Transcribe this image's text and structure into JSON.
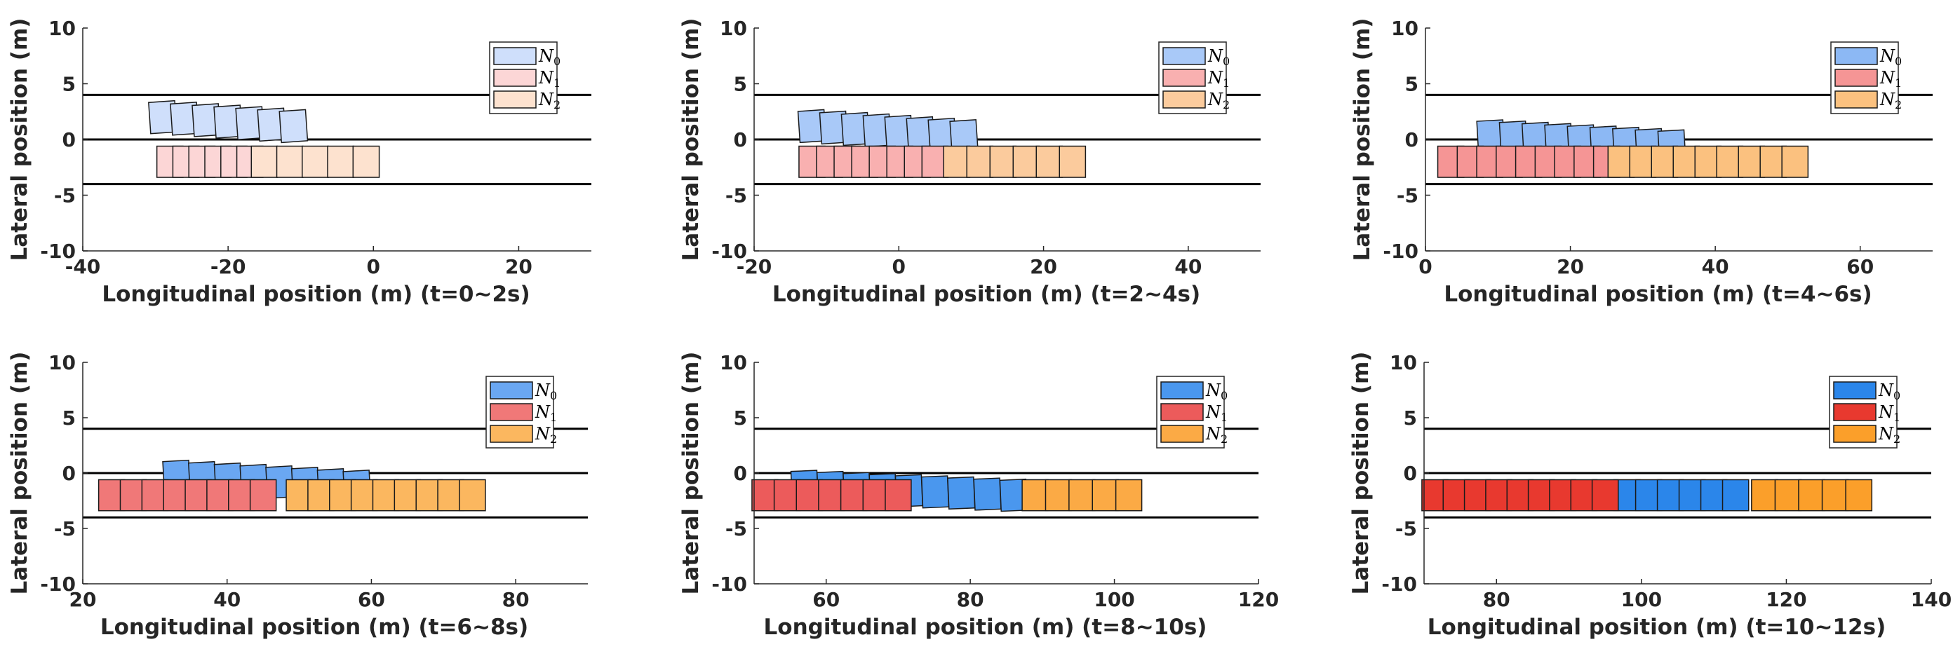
{
  "chart_data": [
    {
      "type": "scatter",
      "title": "",
      "xlabel": "Longitudinal position (m) (t=0~2s)",
      "ylabel": "Lateral position (m)",
      "xlim": [
        -40,
        30
      ],
      "ylim": [
        -10,
        10
      ],
      "xticks": [
        "-40",
        "-20",
        "0",
        "20"
      ],
      "xtick_values": [
        -40,
        -20,
        0,
        20
      ],
      "yticks": [
        "10",
        "5",
        "0",
        "-5",
        "-10"
      ],
      "ytick_values": [
        10,
        5,
        0,
        -5,
        -10
      ],
      "lane_lines": [
        4,
        0,
        -4
      ],
      "legend": {
        "position": "top-right",
        "entries": [
          "N_0",
          "N_1",
          "N_2"
        ]
      },
      "series": [
        {
          "name": "N_0",
          "color": "#cfdffb",
          "x_start": -29,
          "x_end": -11,
          "y_start": 2.0,
          "y_end": 1.2,
          "count": 7
        },
        {
          "name": "N_1",
          "color": "#fcd6d6",
          "x_start": -28,
          "x_end": -17,
          "y_start": -2.0,
          "y_end": -2.0,
          "count": 6
        },
        {
          "name": "N_2",
          "color": "#fde2cf",
          "x_start": -15,
          "x_end": -1,
          "y_start": -2.0,
          "y_end": -2.0,
          "count": 5
        }
      ]
    },
    {
      "type": "scatter",
      "title": "",
      "xlabel": "Longitudinal position (m) (t=2~4s)",
      "ylabel": "Lateral position (m)",
      "xlim": [
        -20,
        50
      ],
      "ylim": [
        -10,
        10
      ],
      "xticks": [
        "-20",
        "0",
        "20",
        "40"
      ],
      "xtick_values": [
        -20,
        0,
        20,
        40
      ],
      "yticks": [
        "10",
        "5",
        "0",
        "-5",
        "-10"
      ],
      "ytick_values": [
        10,
        5,
        0,
        -5,
        -10
      ],
      "lane_lines": [
        4,
        0,
        -4
      ],
      "legend": {
        "position": "top-right",
        "entries": [
          "N_0",
          "N_1",
          "N_2"
        ]
      },
      "series": [
        {
          "name": "N_0",
          "color": "#a9c9f8",
          "x_start": -12,
          "x_end": 9,
          "y_start": 1.2,
          "y_end": 0.3,
          "count": 8
        },
        {
          "name": "N_1",
          "color": "#f9b0b0",
          "x_start": -12,
          "x_end": 5,
          "y_start": -2.0,
          "y_end": -2.0,
          "count": 8
        },
        {
          "name": "N_2",
          "color": "#fbcb9d",
          "x_start": 8,
          "x_end": 24,
          "y_start": -2.0,
          "y_end": -2.0,
          "count": 6
        }
      ]
    },
    {
      "type": "scatter",
      "title": "",
      "xlabel": "Longitudinal position (m) (t=4~6s)",
      "ylabel": "Lateral position (m)",
      "xlim": [
        0,
        70
      ],
      "ylim": [
        -10,
        10
      ],
      "xticks": [
        "0",
        "20",
        "40",
        "60"
      ],
      "xtick_values": [
        0,
        20,
        40,
        60
      ],
      "yticks": [
        "10",
        "5",
        "0",
        "-5",
        "-10"
      ],
      "ytick_values": [
        10,
        5,
        0,
        -5,
        -10
      ],
      "lane_lines": [
        4,
        0,
        -4
      ],
      "legend": {
        "position": "top-right",
        "entries": [
          "N_0",
          "N_1",
          "N_2"
        ]
      },
      "series": [
        {
          "name": "N_0",
          "color": "#8cb8f4",
          "x_start": 9,
          "x_end": 34,
          "y_start": 0.3,
          "y_end": -0.6,
          "count": 9
        },
        {
          "name": "N_1",
          "color": "#f59595",
          "x_start": 3.5,
          "x_end": 25,
          "y_start": -2.0,
          "y_end": -2.0,
          "count": 9
        },
        {
          "name": "N_2",
          "color": "#fbc17f",
          "x_start": 27,
          "x_end": 51,
          "y_start": -2.0,
          "y_end": -2.0,
          "count": 9
        }
      ]
    },
    {
      "type": "scatter",
      "title": "",
      "xlabel": "Longitudinal position (m) (t=6~8s)",
      "ylabel": "Lateral position (m)",
      "xlim": [
        20,
        90
      ],
      "ylim": [
        -10,
        10
      ],
      "xticks": [
        "20",
        "40",
        "60",
        "80"
      ],
      "xtick_values": [
        20,
        40,
        60,
        80
      ],
      "yticks": [
        "10",
        "5",
        "0",
        "-5",
        "-10"
      ],
      "ytick_values": [
        10,
        5,
        0,
        -5,
        -10
      ],
      "lane_lines": [
        4,
        0,
        -4
      ],
      "legend": {
        "position": "top-right",
        "entries": [
          "N_0",
          "N_1",
          "N_2"
        ]
      },
      "series": [
        {
          "name": "N_0",
          "color": "#6aa7f2",
          "x_start": 33,
          "x_end": 58,
          "y_start": -0.3,
          "y_end": -1.2,
          "count": 8
        },
        {
          "name": "N_1",
          "color": "#f07878",
          "x_start": 24,
          "x_end": 45,
          "y_start": -2.0,
          "y_end": -2.0,
          "count": 8
        },
        {
          "name": "N_2",
          "color": "#fbb75f",
          "x_start": 50,
          "x_end": 74,
          "y_start": -2.0,
          "y_end": -2.0,
          "count": 9
        }
      ]
    },
    {
      "type": "scatter",
      "title": "",
      "xlabel": "Longitudinal position (m) (t=8~10s)",
      "ylabel": "Lateral position (m)",
      "xlim": [
        50,
        120
      ],
      "ylim": [
        -10,
        10
      ],
      "xticks": [
        "60",
        "80",
        "100",
        "120"
      ],
      "xtick_values": [
        60,
        80,
        100,
        120
      ],
      "yticks": [
        "10",
        "5",
        "0",
        "-5",
        "-10"
      ],
      "ytick_values": [
        10,
        5,
        0,
        -5,
        -10
      ],
      "lane_lines": [
        4,
        0,
        -4
      ],
      "legend": {
        "position": "top-right",
        "entries": [
          "N_0",
          "N_1",
          "N_2"
        ]
      },
      "series": [
        {
          "name": "N_0",
          "color": "#4a97ee",
          "x_start": 57,
          "x_end": 86,
          "y_start": -1.2,
          "y_end": -2.0,
          "count": 9
        },
        {
          "name": "N_1",
          "color": "#ec5b5b",
          "x_start": 51.5,
          "x_end": 70,
          "y_start": -2.0,
          "y_end": -2.0,
          "count": 7
        },
        {
          "name": "N_2",
          "color": "#fbaa45",
          "x_start": 89,
          "x_end": 102,
          "y_start": -2.0,
          "y_end": -2.0,
          "count": 5
        }
      ]
    },
    {
      "type": "scatter",
      "title": "",
      "xlabel": "Longitudinal position (m) (t=10~12s)",
      "ylabel": "Lateral position (m)",
      "xlim": [
        70,
        140
      ],
      "ylim": [
        -10,
        10
      ],
      "xticks": [
        "80",
        "100",
        "120",
        "140"
      ],
      "xtick_values": [
        80,
        100,
        120,
        140
      ],
      "yticks": [
        "10",
        "5",
        "0",
        "-5",
        "-10"
      ],
      "ytick_values": [
        10,
        5,
        0,
        -5,
        -10
      ],
      "lane_lines": [
        4,
        0,
        -4
      ],
      "legend": {
        "position": "top-right",
        "entries": [
          "N_0",
          "N_1",
          "N_2"
        ]
      },
      "series": [
        {
          "name": "N_0",
          "color": "#2b86ea",
          "x_start": 98,
          "x_end": 113,
          "y_start": -2.0,
          "y_end": -2.0,
          "count": 6
        },
        {
          "name": "N_1",
          "color": "#e8392f",
          "x_start": 71.5,
          "x_end": 95,
          "y_start": -2.0,
          "y_end": -2.0,
          "count": 9
        },
        {
          "name": "N_2",
          "color": "#fb9f2a",
          "x_start": 117,
          "x_end": 130,
          "y_start": -2.0,
          "y_end": -2.0,
          "count": 5
        }
      ]
    }
  ]
}
